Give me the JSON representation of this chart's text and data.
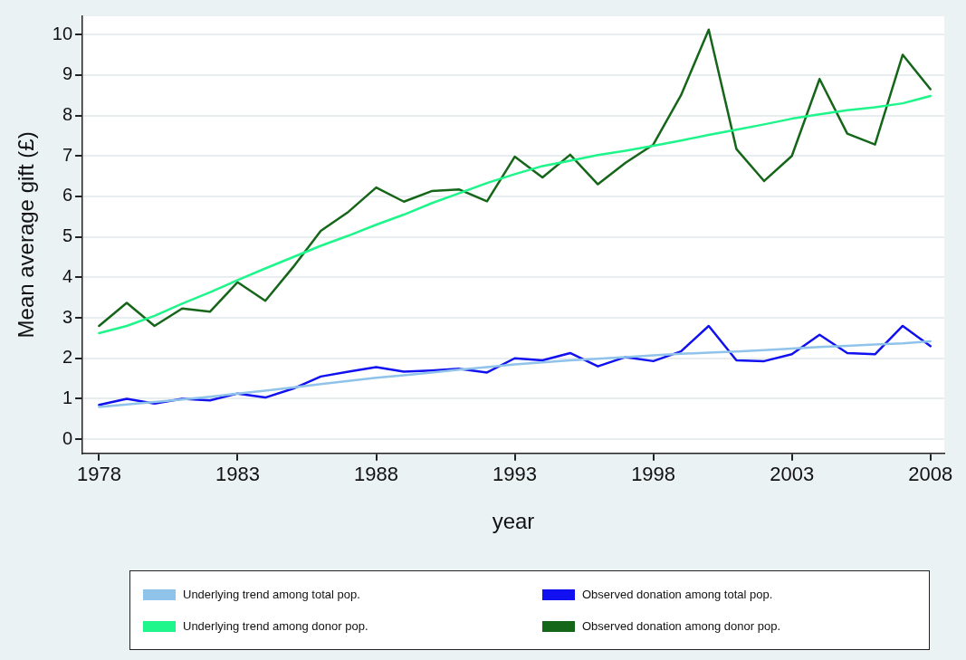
{
  "chart_data": {
    "type": "line",
    "xlabel": "year",
    "ylabel": "Mean average gift (£)",
    "x": [
      1978,
      1979,
      1980,
      1981,
      1982,
      1983,
      1984,
      1985,
      1986,
      1987,
      1988,
      1989,
      1990,
      1991,
      1992,
      1993,
      1994,
      1995,
      1996,
      1997,
      1998,
      1999,
      2000,
      2001,
      2002,
      2003,
      2004,
      2005,
      2006,
      2007,
      2008
    ],
    "series": [
      {
        "name": "Underlying trend among total pop.",
        "color": "#8fc3ea",
        "values": [
          0.8,
          0.86,
          0.92,
          0.98,
          1.05,
          1.13,
          1.2,
          1.28,
          1.36,
          1.44,
          1.52,
          1.58,
          1.65,
          1.72,
          1.78,
          1.85,
          1.9,
          1.95,
          1.99,
          2.03,
          2.07,
          2.11,
          2.14,
          2.17,
          2.2,
          2.24,
          2.28,
          2.31,
          2.34,
          2.37,
          2.42
        ]
      },
      {
        "name": "Observed donation among total pop.",
        "color": "#1010f0",
        "values": [
          0.85,
          1.0,
          0.88,
          1.0,
          0.96,
          1.13,
          1.03,
          1.25,
          1.55,
          1.67,
          1.78,
          1.67,
          1.7,
          1.74,
          1.65,
          2.0,
          1.95,
          2.13,
          1.8,
          2.03,
          1.93,
          2.17,
          2.8,
          1.95,
          1.93,
          2.1,
          2.58,
          2.13,
          2.1,
          2.8,
          2.3
        ]
      },
      {
        "name": "Underlying trend among donor pop.",
        "color": "#1ef58a",
        "values": [
          2.62,
          2.8,
          3.05,
          3.35,
          3.63,
          3.93,
          4.22,
          4.5,
          4.78,
          5.03,
          5.3,
          5.55,
          5.83,
          6.08,
          6.33,
          6.55,
          6.75,
          6.88,
          7.02,
          7.13,
          7.25,
          7.38,
          7.52,
          7.65,
          7.78,
          7.92,
          8.03,
          8.13,
          8.2,
          8.3,
          8.48
        ]
      },
      {
        "name": "Observed donation among donor pop.",
        "color": "#16661a",
        "values": [
          2.8,
          3.37,
          2.8,
          3.23,
          3.15,
          3.88,
          3.42,
          4.25,
          5.15,
          5.62,
          6.22,
          5.87,
          6.13,
          6.17,
          5.88,
          6.98,
          6.47,
          7.03,
          6.3,
          6.83,
          7.28,
          8.5,
          10.12,
          7.17,
          6.38,
          7.0,
          8.9,
          7.55,
          7.28,
          9.5,
          8.65
        ]
      }
    ],
    "xlim": [
      1977.4,
      2008.5
    ],
    "xticks": [
      1978,
      1983,
      1988,
      1993,
      1998,
      2003,
      2008
    ],
    "ylim": [
      -0.35,
      10.45
    ],
    "yticks": [
      0,
      1,
      2,
      3,
      4,
      5,
      6,
      7,
      8,
      9,
      10
    ],
    "grid": "y",
    "legend": "bottom",
    "marker": "none",
    "line_style": "solid"
  }
}
